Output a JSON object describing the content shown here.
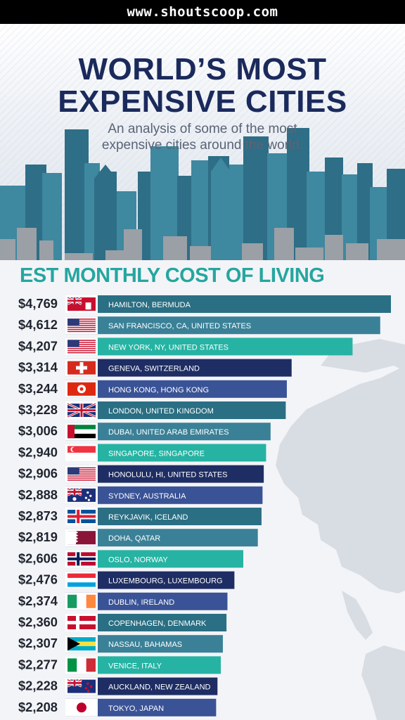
{
  "watermark": "www.shoutscoop.com",
  "header": {
    "title_line1": "WORLD’S MOST",
    "title_line2": "EXPENSIVE CITIES",
    "subtitle_line1": "An analysis of some of the most",
    "subtitle_line2": "expensive cities around the world."
  },
  "chart_data": {
    "type": "bar",
    "orientation": "horizontal",
    "title": "EST MONTHLY COST OF LIVING",
    "categories": [
      "HAMILTON, BERMUDA",
      "SAN FRANCISCO, CA, UNITED STATES",
      "NEW YORK, NY, UNITED STATES",
      "GENEVA, SWITZERLAND",
      "HONG KONG, HONG KONG",
      "LONDON, UNITED KINGDOM",
      "DUBAI, UNITED ARAB EMIRATES",
      "SINGAPORE, SINGAPORE",
      "HONOLULU, HI, UNITED STATES",
      "SYDNEY, AUSTRALIA",
      "REYKJAVIK, ICELAND",
      "DOHA, QATAR",
      "OSLO, NORWAY",
      "LUXEMBOURG, LUXEMBOURG",
      "DUBLIN, IRELAND",
      "COPENHAGEN, DENMARK",
      "NASSAU, BAHAMAS",
      "VENICE, ITALY",
      "AUCKLAND, NEW ZEALAND",
      "TOKYO, JAPAN"
    ],
    "values": [
      4769,
      4612,
      4207,
      3314,
      3244,
      3228,
      3006,
      2940,
      2906,
      2888,
      2873,
      2819,
      2606,
      2476,
      2374,
      2360,
      2307,
      2277,
      2228,
      2208
    ],
    "value_labels": [
      "$4,769",
      "$4,612",
      "$4,207",
      "$3,314",
      "$3,244",
      "$3,228",
      "$3,006",
      "$2,940",
      "$2,906",
      "$2,888",
      "$2,873",
      "$2,819",
      "$2,606",
      "$2,476",
      "$2,374",
      "$2,360",
      "$2,307",
      "$2,277",
      "$2,228",
      "$2,208"
    ],
    "flag_icons": [
      "bermuda-flag-icon",
      "usa-flag-icon",
      "usa-flag-icon",
      "switzerland-flag-icon",
      "hong-kong-flag-icon",
      "uk-flag-icon",
      "uae-flag-icon",
      "singapore-flag-icon",
      "usa-flag-icon",
      "australia-flag-icon",
      "iceland-flag-icon",
      "qatar-flag-icon",
      "norway-flag-icon",
      "luxembourg-flag-icon",
      "ireland-flag-icon",
      "denmark-flag-icon",
      "bahamas-flag-icon",
      "italy-flag-icon",
      "new-zealand-flag-icon",
      "japan-flag-icon"
    ],
    "bar_colors": [
      "#2a6f83",
      "#3a8198",
      "#26b3a3",
      "#1e2d63",
      "#3a5396",
      "#2a6f83",
      "#3a8198",
      "#26b3a3",
      "#1e2d63",
      "#3a5396",
      "#2a6f83",
      "#3a8198",
      "#26b3a3",
      "#1e2d63",
      "#3a5396",
      "#2a6f83",
      "#3a8198",
      "#26b3a3",
      "#1e2d63",
      "#3a5396"
    ]
  },
  "colors": {
    "title": "#1b2a5c",
    "subtitle": "#5a6478",
    "chart_heading": "#25a6a0",
    "skyline_dark": "#2e6e86",
    "skyline_mid": "#3e88a0",
    "skyline_gray": "#9aa0a6",
    "map_land": "#d8dde4"
  }
}
